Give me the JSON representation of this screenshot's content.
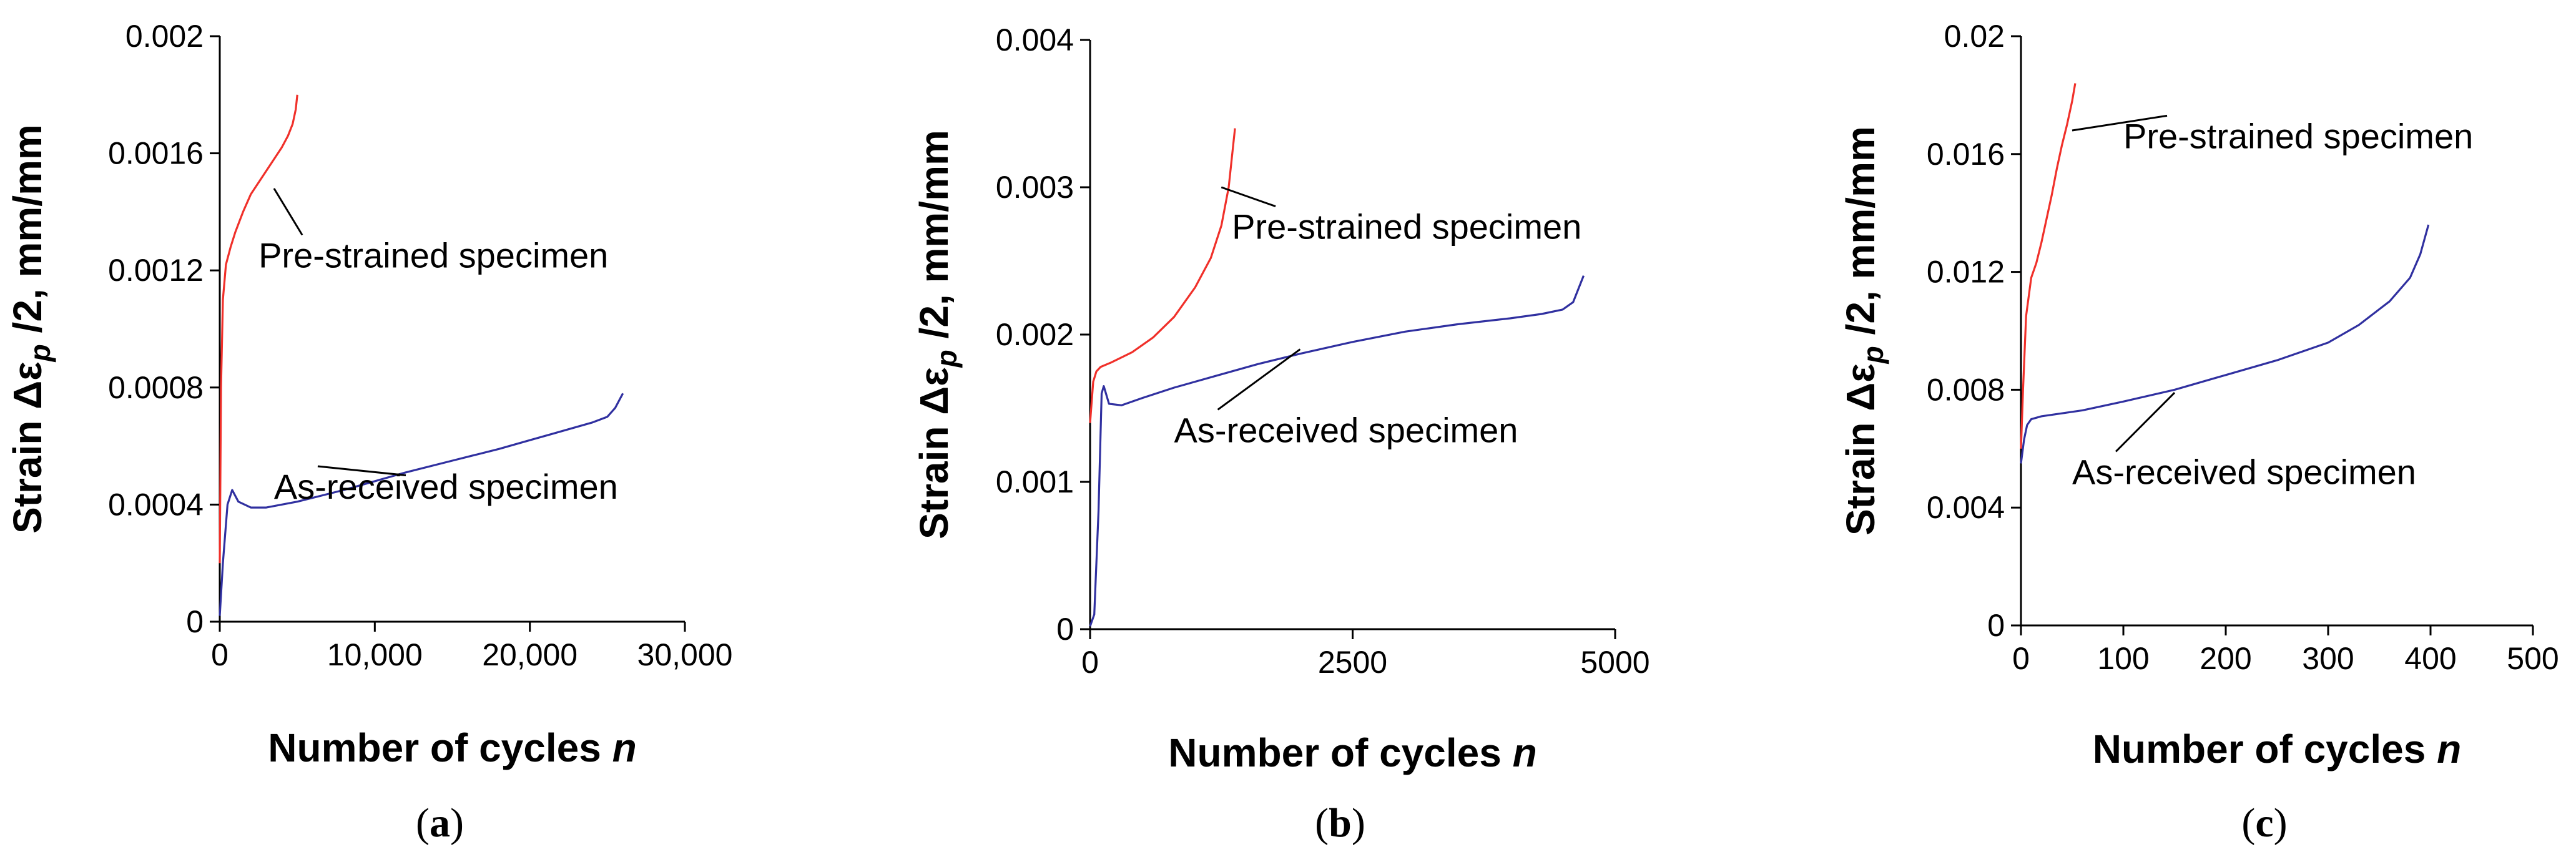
{
  "chart_data": [
    {
      "type": "line",
      "panel_label": "(a)",
      "xlabel": "Number of cycles",
      "xlabel_var": "n",
      "ylabel": "Strain Δε",
      "ylabel_sub": "p",
      "ylabel_tail": " /2, mm/mm",
      "xlim": [
        0,
        30000
      ],
      "ylim": [
        0,
        0.002
      ],
      "xticks": [
        0,
        10000,
        20000,
        30000
      ],
      "xtick_labels": [
        "0",
        "10,000",
        "20,000",
        "30,000"
      ],
      "yticks": [
        0,
        0.0004,
        0.0008,
        0.0012,
        0.0016,
        0.002
      ],
      "ytick_labels": [
        "0",
        "0.0004",
        "0.0008",
        "0.0012",
        "0.0016",
        "0.002"
      ],
      "series": [
        {
          "name": "Pre-strained specimen",
          "color": "#f0302a",
          "label": "Pre-strained specimen",
          "x": [
            0,
            80,
            200,
            400,
            700,
            1000,
            1500,
            2000,
            2500,
            3000,
            3500,
            4000,
            4400,
            4700,
            4900,
            5000
          ],
          "y": [
            0.0002,
            0.0008,
            0.0011,
            0.00122,
            0.00128,
            0.00133,
            0.0014,
            0.00146,
            0.0015,
            0.00154,
            0.00158,
            0.00162,
            0.00166,
            0.0017,
            0.00175,
            0.0018
          ]
        },
        {
          "name": "As-received specimen",
          "color": "#3030a0",
          "label": "As-received specimen",
          "x": [
            0,
            200,
            500,
            800,
            1200,
            2000,
            3000,
            5000,
            8000,
            10000,
            12000,
            15000,
            18000,
            20000,
            22000,
            24000,
            25000,
            25500,
            26000
          ],
          "y": [
            2e-05,
            0.0002,
            0.0004,
            0.00045,
            0.00041,
            0.00039,
            0.00039,
            0.00041,
            0.00045,
            0.00048,
            0.00051,
            0.00055,
            0.00059,
            0.00062,
            0.00065,
            0.00068,
            0.0007,
            0.00073,
            0.00078
          ]
        }
      ],
      "annotations": [
        {
          "text": "Pre-strained specimen",
          "series": 0,
          "point_x": 3500,
          "point_y": 0.00148,
          "text_x": 2500,
          "text_y": 0.00121
        },
        {
          "text": "As-received specimen",
          "series": 1,
          "point_x": 12000,
          "point_y": 0.0005,
          "text_x": 3500,
          "text_y": 0.00042
        }
      ]
    },
    {
      "type": "line",
      "panel_label": "(b)",
      "xlabel": "Number of cycles",
      "xlabel_var": "n",
      "ylabel": "Strain Δε",
      "ylabel_sub": "p",
      "ylabel_tail": " /2, mm/mm",
      "xlim": [
        0,
        5000
      ],
      "ylim": [
        0,
        0.004
      ],
      "xticks": [
        0,
        2500,
        5000
      ],
      "xtick_labels": [
        "0",
        "2500",
        "5000"
      ],
      "yticks": [
        0,
        0.001,
        0.002,
        0.003,
        0.004
      ],
      "ytick_labels": [
        "0",
        "0.001",
        "0.002",
        "0.003",
        "0.004"
      ],
      "series": [
        {
          "name": "Pre-strained specimen",
          "color": "#f0302a",
          "label": "Pre-strained specimen",
          "x": [
            0,
            30,
            60,
            100,
            200,
            400,
            600,
            800,
            1000,
            1150,
            1250,
            1320,
            1380
          ],
          "y": [
            0.0014,
            0.00168,
            0.00175,
            0.00178,
            0.00181,
            0.00188,
            0.00198,
            0.00212,
            0.00232,
            0.00252,
            0.00274,
            0.003,
            0.0034
          ]
        },
        {
          "name": "As-received specimen",
          "color": "#3030a0",
          "label": "As-received specimen",
          "x": [
            0,
            40,
            80,
            110,
            130,
            180,
            300,
            500,
            800,
            1200,
            1600,
            2000,
            2500,
            3000,
            3500,
            4000,
            4300,
            4500,
            4600,
            4700
          ],
          "y": [
            2e-05,
            0.0001,
            0.0008,
            0.0016,
            0.00165,
            0.00153,
            0.00152,
            0.00157,
            0.00164,
            0.00172,
            0.0018,
            0.00187,
            0.00195,
            0.00202,
            0.00207,
            0.00211,
            0.00214,
            0.00217,
            0.00222,
            0.0024
          ]
        }
      ],
      "annotations": [
        {
          "text": "Pre-strained specimen",
          "series": 0,
          "point_x": 1250,
          "point_y": 0.003,
          "text_x": 1350,
          "text_y": 0.00265
        },
        {
          "text": "As-received specimen",
          "series": 1,
          "point_x": 2000,
          "point_y": 0.0019,
          "text_x": 800,
          "text_y": 0.00127
        }
      ]
    },
    {
      "type": "line",
      "panel_label": "(c)",
      "xlabel": "Number of cycles",
      "xlabel_var": "n",
      "ylabel": "Strain Δε",
      "ylabel_sub": "p",
      "ylabel_tail": " /2, mm/mm",
      "xlim": [
        0,
        500
      ],
      "ylim": [
        0,
        0.02
      ],
      "xticks": [
        0,
        100,
        200,
        300,
        400,
        500
      ],
      "xtick_labels": [
        "0",
        "100",
        "200",
        "300",
        "400",
        "500"
      ],
      "yticks": [
        0,
        0.004,
        0.008,
        0.012,
        0.016,
        0.02
      ],
      "ytick_labels": [
        "0",
        "0.004",
        "0.008",
        "0.012",
        "0.016",
        "0.02"
      ],
      "series": [
        {
          "name": "Pre-strained specimen",
          "color": "#f0302a",
          "label": "Pre-strained specimen",
          "x": [
            0,
            2,
            5,
            10,
            15,
            20,
            25,
            30,
            35,
            40,
            45,
            50,
            53
          ],
          "y": [
            0.006,
            0.008,
            0.0105,
            0.0118,
            0.0123,
            0.013,
            0.0138,
            0.0146,
            0.0155,
            0.0163,
            0.017,
            0.0178,
            0.0184
          ]
        },
        {
          "name": "As-received specimen",
          "color": "#3030a0",
          "label": "As-received specimen",
          "x": [
            0,
            3,
            6,
            10,
            20,
            40,
            60,
            100,
            150,
            200,
            250,
            300,
            330,
            360,
            380,
            390,
            398
          ],
          "y": [
            0.0055,
            0.0063,
            0.0068,
            0.007,
            0.0071,
            0.0072,
            0.0073,
            0.0076,
            0.008,
            0.0085,
            0.009,
            0.0096,
            0.0102,
            0.011,
            0.0118,
            0.0126,
            0.0136
          ]
        }
      ],
      "annotations": [
        {
          "text": "Pre-strained specimen",
          "series": 0,
          "point_x": 50,
          "point_y": 0.0168,
          "text_x": 100,
          "text_y": 0.0162
        },
        {
          "text": "As-received specimen",
          "series": 1,
          "point_x": 150,
          "point_y": 0.0079,
          "text_x": 50,
          "text_y": 0.0048
        }
      ]
    }
  ]
}
